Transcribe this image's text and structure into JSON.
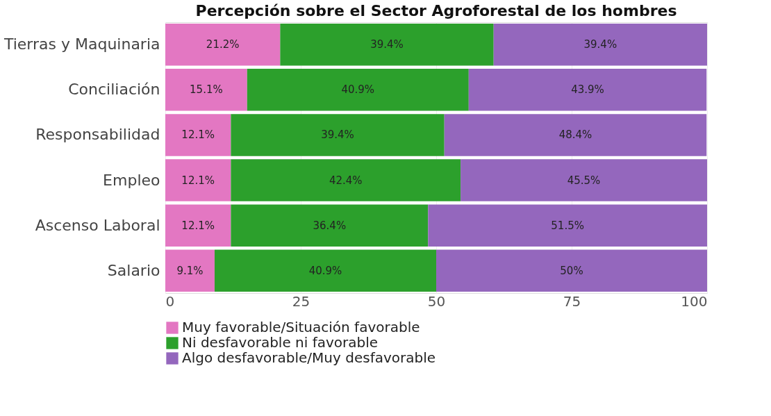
{
  "chart_data": {
    "type": "bar",
    "orientation": "horizontal",
    "stacked": true,
    "title": "Percepción sobre el Sector Agroforestal de los hombres",
    "categories": [
      "Tierras y Maquinaria",
      "Conciliación",
      "Responsabilidad",
      "Empleo",
      "Ascenso Laboral",
      "Salario"
    ],
    "series": [
      {
        "name": "Muy favorable/Situación favorable",
        "color": "#e377c2",
        "values": [
          21.2,
          15.1,
          12.1,
          12.1,
          12.1,
          9.1
        ],
        "value_labels": [
          "21.2%",
          "15.1%",
          "12.1%",
          "12.1%",
          "12.1%",
          "9.1%"
        ]
      },
      {
        "name": "Ni desfavorable ni favorable",
        "color": "#2ca02c",
        "values": [
          39.4,
          40.9,
          39.4,
          42.4,
          36.4,
          40.9
        ],
        "value_labels": [
          "39.4%",
          "40.9%",
          "39.4%",
          "42.4%",
          "36.4%",
          "40.9%"
        ]
      },
      {
        "name": "Algo desfavorable/Muy desfavorable",
        "color": "#9467bd",
        "values": [
          39.4,
          43.9,
          48.4,
          45.5,
          51.5,
          50
        ],
        "value_labels": [
          "39.4%",
          "43.9%",
          "48.4%",
          "45.5%",
          "51.5%",
          "50%"
        ]
      }
    ],
    "xlim": [
      0,
      100
    ],
    "xticks": [
      0,
      25,
      50,
      75,
      100
    ],
    "grid": "x",
    "legend": "bottom"
  }
}
